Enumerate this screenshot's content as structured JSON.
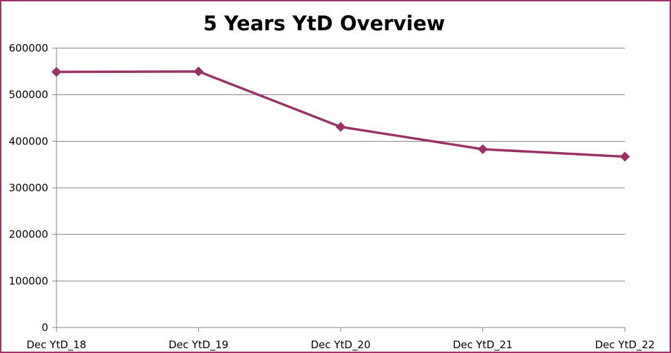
{
  "chart_data": {
    "type": "line",
    "title": "5 Years YtD Overview",
    "categories": [
      "Dec YtD_18",
      "Dec YtD_19",
      "Dec YtD_20",
      "Dec YtD_21",
      "Dec YtD_22"
    ],
    "series": [
      {
        "values": [
          549000,
          550000,
          431000,
          383000,
          367000
        ],
        "color": "#993366",
        "marker": "diamond"
      }
    ],
    "xlabel": "",
    "ylabel": "",
    "ylim": [
      0,
      600000
    ],
    "yticks": [
      0,
      100000,
      200000,
      300000,
      400000,
      500000,
      600000
    ],
    "ytick_labels": [
      "0",
      "100000",
      "200000",
      "300000",
      "400000",
      "500000",
      "600000"
    ],
    "grid": true,
    "legend": "none"
  },
  "colors": {
    "border": "#A0306A",
    "series": "#993366",
    "grid": "#808080",
    "axis": "#808080"
  }
}
